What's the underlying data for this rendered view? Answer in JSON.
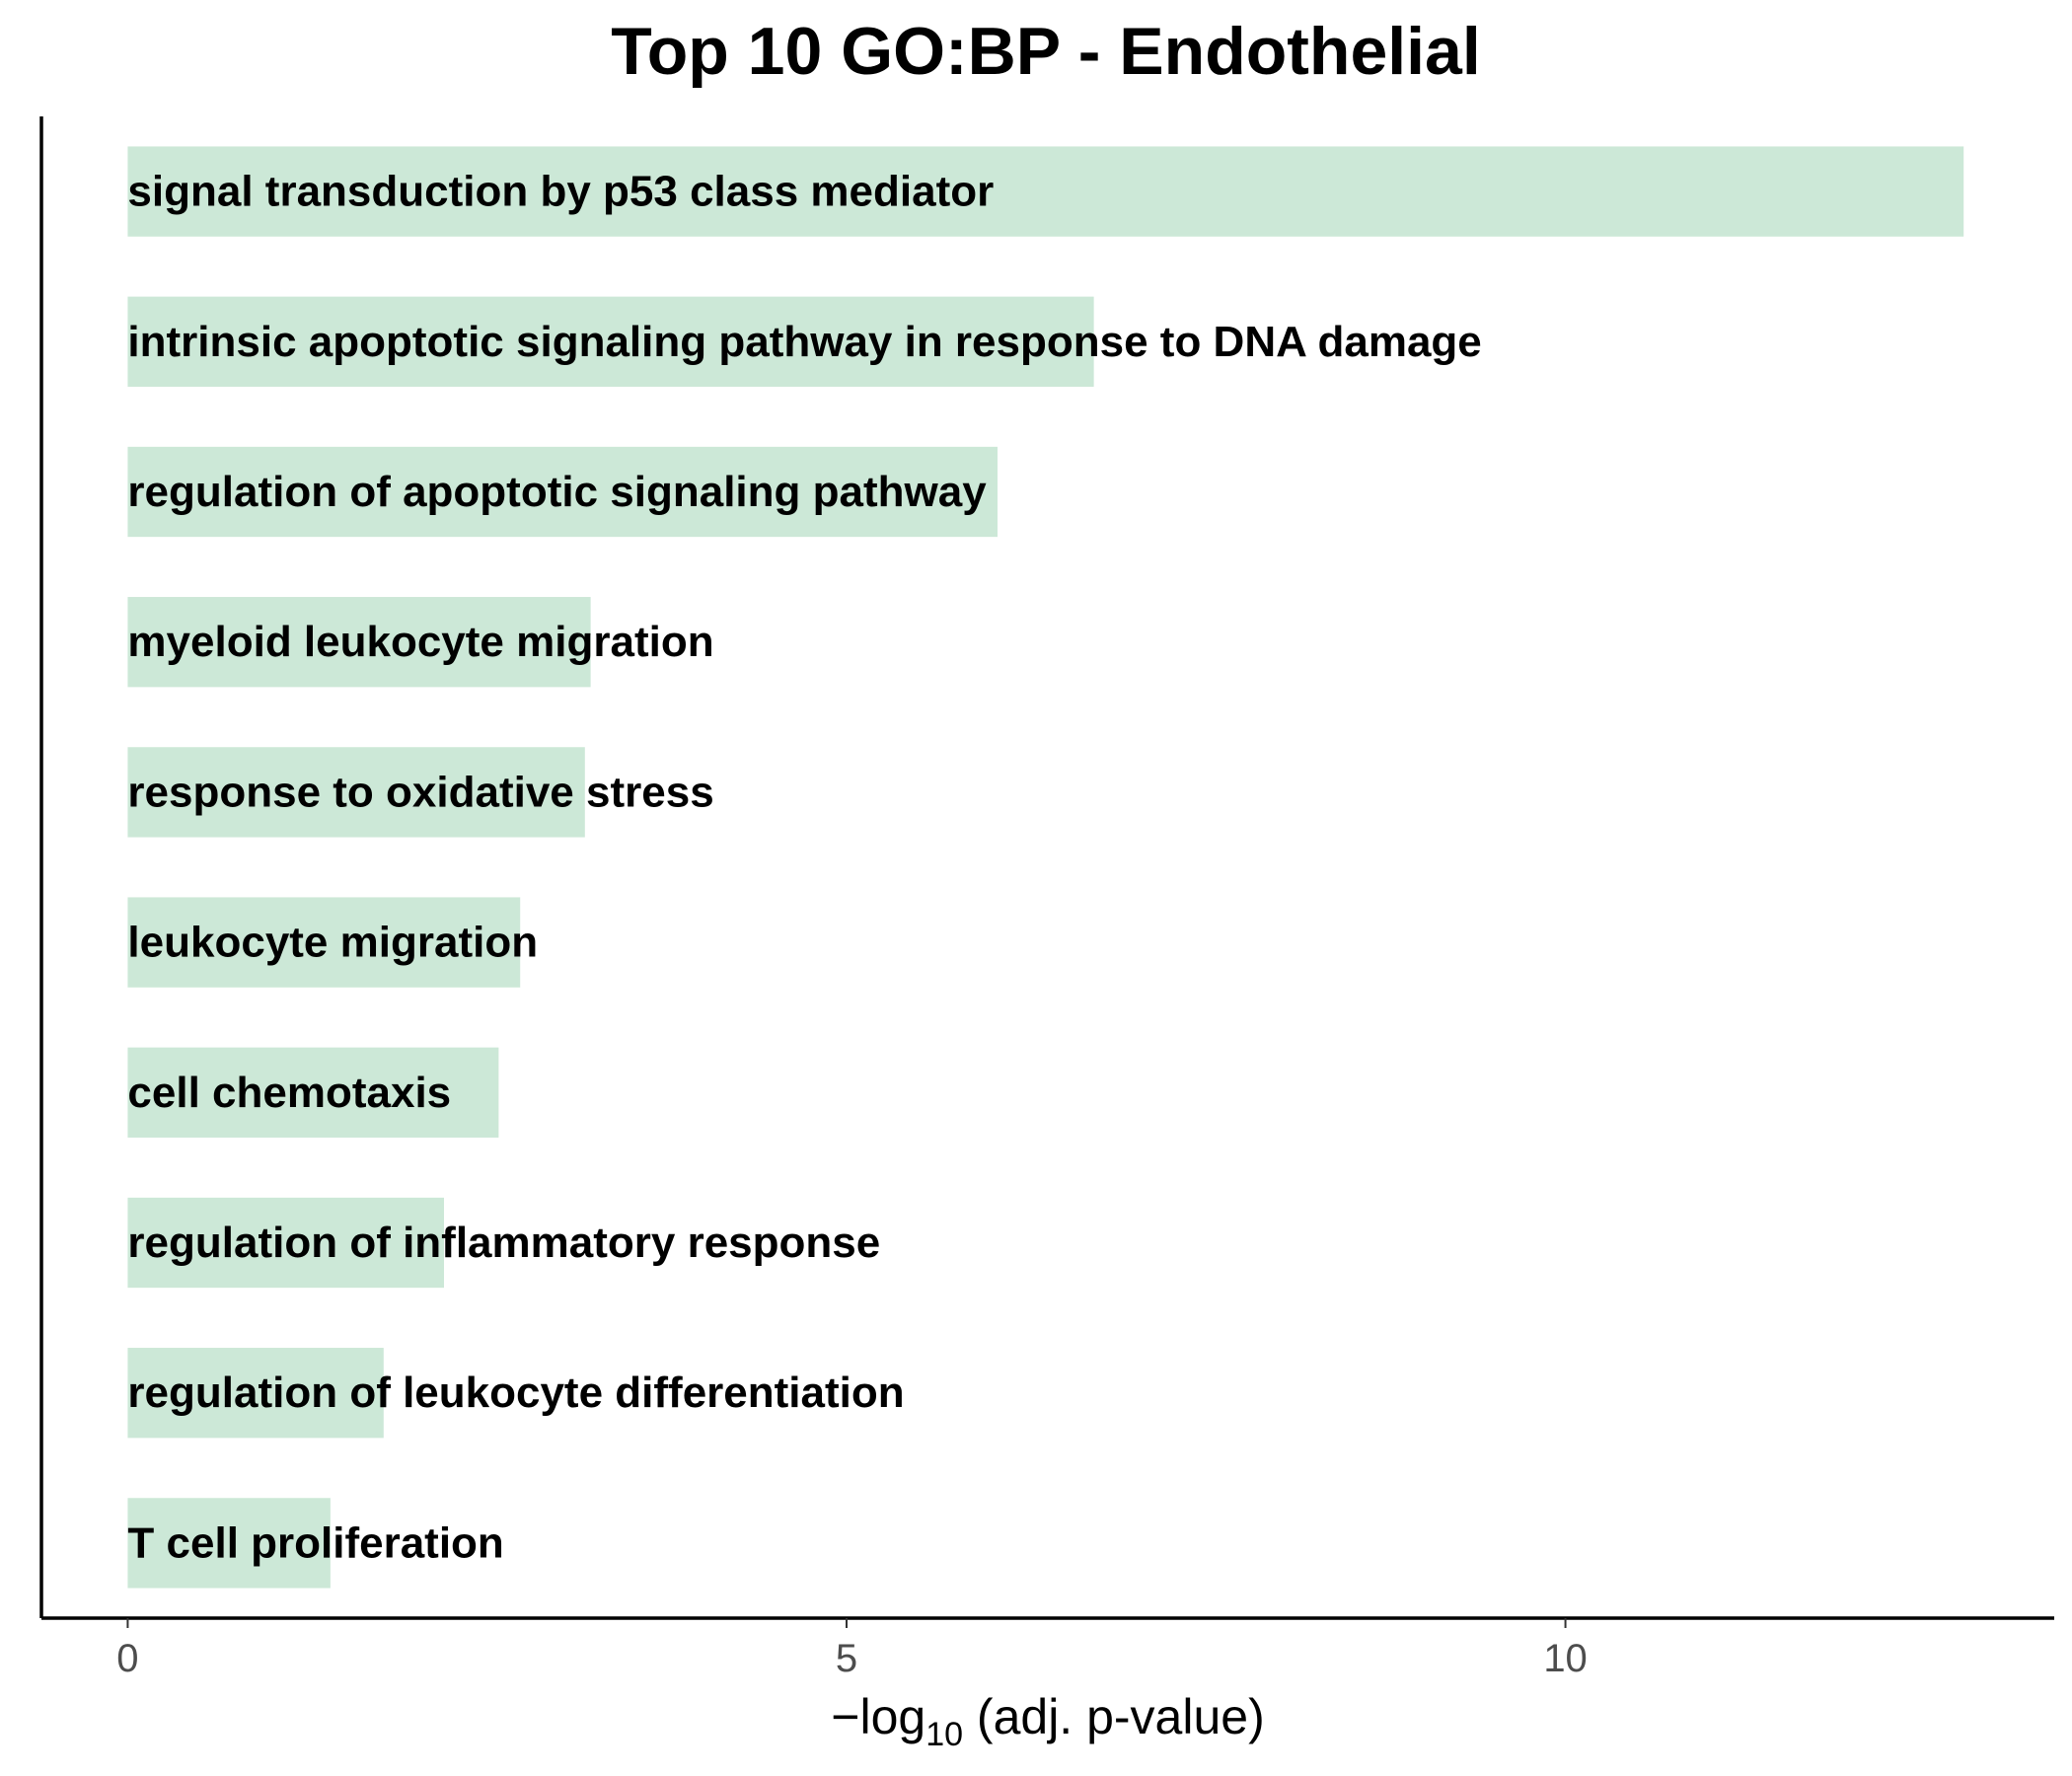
{
  "chart_data": {
    "type": "bar",
    "orientation": "horizontal",
    "title": "Top 10 GO:BP - Endothelial",
    "xlabel": {
      "prefix": "−log",
      "subscript": "10",
      "suffix": " (adj. p-value)"
    },
    "ylabel": "",
    "xlim": [
      -0.6,
      13.4
    ],
    "xticks": [
      {
        "value": 0,
        "label": "0"
      },
      {
        "value": 5,
        "label": "5"
      },
      {
        "value": 10,
        "label": "10"
      }
    ],
    "categories": [
      "signal transduction by p53 class mediator",
      "intrinsic apoptotic signaling pathway in response to DNA damage",
      "regulation of apoptotic signaling pathway",
      "myeloid leukocyte migration",
      "response to oxidative stress",
      "leukocyte migration",
      "cell chemotaxis",
      "regulation of inflammatory response",
      "regulation of leukocyte differentiation",
      "T cell proliferation"
    ],
    "values": [
      12.77,
      6.72,
      6.05,
      3.22,
      3.18,
      2.73,
      2.58,
      2.2,
      1.78,
      1.41
    ],
    "bar_color": "#cce8d7",
    "grid": false,
    "legend": "none"
  }
}
